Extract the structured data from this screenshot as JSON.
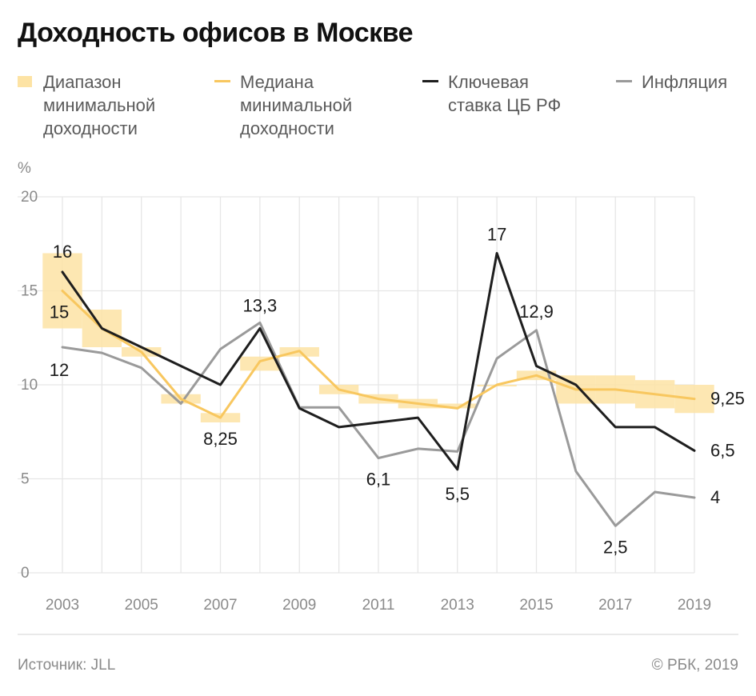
{
  "title": "Доходность офисов в Москве",
  "legend": [
    {
      "label": "Диапазон\nминимальной\nдоходности",
      "kind": "range",
      "color": "#fde3a4"
    },
    {
      "label": "Медиана\nминимальной\nдоходности",
      "kind": "median",
      "color": "#f8c75f"
    },
    {
      "label": "Ключевая\nставка ЦБ РФ",
      "kind": "key_rate",
      "color": "#1e1e1e"
    },
    {
      "label": "Инфляция",
      "kind": "inflation",
      "color": "#9a9a9a"
    }
  ],
  "source": "Источник: JLL",
  "credit": "© РБК, 2019",
  "chart_data": {
    "type": "line",
    "title": "Доходность офисов в Москве",
    "ylabel": "%",
    "ylim": [
      0,
      20
    ],
    "yticks": [
      "0",
      "5",
      "10",
      "15",
      "20"
    ],
    "x": [
      2003,
      2004,
      2005,
      2006,
      2007,
      2008,
      2009,
      2010,
      2011,
      2012,
      2013,
      2014,
      2015,
      2016,
      2017,
      2018,
      2019
    ],
    "xticks": [
      "2003",
      "2005",
      "2007",
      "2009",
      "2011",
      "2013",
      "2015",
      "2017",
      "2019"
    ],
    "grid": "vertical",
    "legend_position": "top",
    "series": [
      {
        "name": "Медиана минимальной доходности",
        "color": "#f8c75f",
        "values": [
          15,
          13,
          11.75,
          9.25,
          8.25,
          11.25,
          11.8,
          9.75,
          9.25,
          9,
          8.75,
          10,
          10.5,
          9.75,
          9.75,
          9.5,
          9.25
        ]
      },
      {
        "name": "Ключевая ставка ЦБ РФ",
        "color": "#1e1e1e",
        "values": [
          16,
          13,
          12,
          11,
          10,
          13,
          8.75,
          7.75,
          8,
          8.25,
          5.5,
          17,
          11,
          10,
          7.75,
          7.75,
          6.5
        ]
      },
      {
        "name": "Инфляция",
        "color": "#9a9a9a",
        "values": [
          12,
          11.7,
          10.9,
          9,
          11.9,
          13.3,
          8.8,
          8.8,
          6.1,
          6.6,
          6.45,
          11.4,
          12.9,
          5.4,
          2.5,
          4.3,
          4
        ]
      }
    ],
    "range": {
      "name": "Диапазон минимальной доходности",
      "color": "#fde3a4",
      "low": [
        13,
        12,
        11.5,
        9,
        8,
        10.75,
        11.5,
        9.5,
        9,
        8.75,
        8.75,
        10,
        10.25,
        9,
        9,
        8.75,
        8.5
      ],
      "high": [
        17,
        14,
        12,
        9.5,
        8.5,
        11.5,
        12,
        10,
        9.5,
        9.25,
        9,
        10,
        10.75,
        10.5,
        10.5,
        10.25,
        10
      ]
    },
    "annotations": [
      {
        "text": "16",
        "x": 2003,
        "series": "key_rate"
      },
      {
        "text": "15",
        "x": 2003,
        "series": "median"
      },
      {
        "text": "12",
        "x": 2003,
        "series": "inflation"
      },
      {
        "text": "8,25",
        "x": 2007,
        "series": "median"
      },
      {
        "text": "13,3",
        "x": 2008,
        "series": "inflation"
      },
      {
        "text": "6,1",
        "x": 2011,
        "series": "inflation"
      },
      {
        "text": "5,5",
        "x": 2013,
        "series": "key_rate"
      },
      {
        "text": "17",
        "x": 2014,
        "series": "key_rate"
      },
      {
        "text": "12,9",
        "x": 2015,
        "series": "inflation"
      },
      {
        "text": "2,5",
        "x": 2017,
        "series": "inflation"
      },
      {
        "text": "9,25",
        "x": 2019,
        "series": "median"
      },
      {
        "text": "6,5",
        "x": 2019,
        "series": "key_rate"
      },
      {
        "text": "4",
        "x": 2019,
        "series": "inflation"
      }
    ]
  }
}
